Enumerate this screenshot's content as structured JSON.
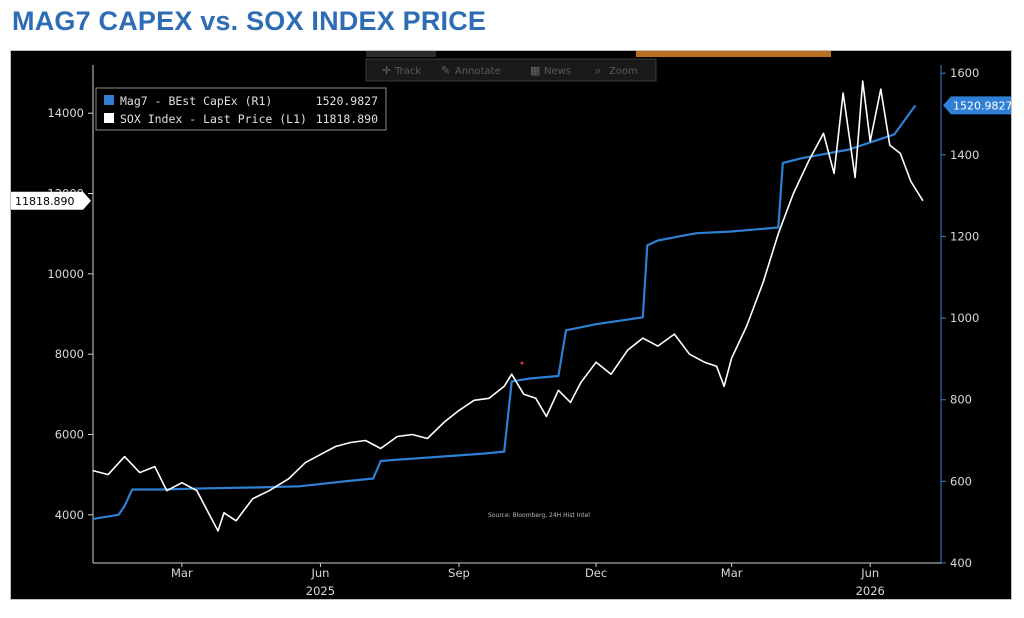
{
  "title": "MAG7 CAPEX vs. SOX INDEX PRICE",
  "toolbar": {
    "track_label": "Track",
    "annotate_label": "Annotate",
    "news_label": "News",
    "zoom_label": "Zoom"
  },
  "colors": {
    "background": "#000000",
    "capex_line": "#2f7fd4",
    "sox_line": "#ffffff",
    "title": "#2e6cb5"
  },
  "chart_data": {
    "type": "line",
    "source_note": "Source: Bloomberg, 24H Hist Intel",
    "legend": {
      "position": "top-left",
      "entries": [
        {
          "label": "Mag7 - BEst CapEx (R1)",
          "value": "1520.9827",
          "color": "#2f7fd4"
        },
        {
          "label": "SOX Index - Last Price (L1)",
          "value": "11818.890",
          "color": "#ffffff"
        }
      ]
    },
    "x_axis": {
      "month_ticks": [
        {
          "label": "Mar",
          "t": "2025-03"
        },
        {
          "label": "Jun",
          "t": "2025-06"
        },
        {
          "label": "Sep",
          "t": "2025-09"
        },
        {
          "label": "Dec",
          "t": "2025-12"
        },
        {
          "label": "Mar",
          "t": "2026-03"
        },
        {
          "label": "Jun",
          "t": "2026-06"
        }
      ],
      "year_labels": [
        {
          "label": "2025",
          "t": "2025-06"
        },
        {
          "label": "2026",
          "t": "2026-06"
        }
      ],
      "range": [
        "2025-01-15",
        "2026-08-01"
      ]
    },
    "y_left": {
      "label": "",
      "range": [
        2800,
        15200
      ],
      "ticks": [
        "4000",
        "6000",
        "8000",
        "10000",
        "12000",
        "14000"
      ],
      "last_value_tag": "11818.890"
    },
    "y_right": {
      "label": "",
      "range": [
        400,
        1620
      ],
      "ticks": [
        "400",
        "600",
        "800",
        "1000",
        "1200",
        "1400",
        "1600"
      ],
      "last_value_tag": "1520.9827"
    },
    "series": [
      {
        "name": "Mag7 - BEst CapEx (R1)",
        "axis": "right",
        "x": [
          "2025-01-15",
          "2025-02-01",
          "2025-02-05",
          "2025-02-10",
          "2025-03-01",
          "2025-04-01",
          "2025-05-01",
          "2025-06-01",
          "2025-07-01",
          "2025-07-20",
          "2025-07-25",
          "2025-08-01",
          "2025-09-01",
          "2025-10-01",
          "2025-10-15",
          "2025-10-20",
          "2025-11-01",
          "2025-11-20",
          "2025-11-25",
          "2025-12-15",
          "2026-01-15",
          "2026-01-18",
          "2026-01-25",
          "2026-02-15",
          "2026-02-20",
          "2026-03-15",
          "2026-04-15",
          "2026-04-18",
          "2026-05-01",
          "2026-06-01",
          "2026-07-01",
          "2026-07-15"
        ],
        "values": [
          508,
          518,
          540,
          580,
          580,
          583,
          585,
          588,
          600,
          607,
          650,
          652,
          660,
          668,
          673,
          845,
          852,
          858,
          970,
          985,
          1002,
          1178,
          1190,
          1205,
          1208,
          1212,
          1222,
          1380,
          1392,
          1413,
          1450,
          1521
        ]
      },
      {
        "name": "SOX Index - Last Price (L1)",
        "axis": "left",
        "x": [
          "2025-01-15",
          "2025-01-25",
          "2025-02-05",
          "2025-02-15",
          "2025-02-25",
          "2025-03-05",
          "2025-03-15",
          "2025-03-25",
          "2025-04-03",
          "2025-04-08",
          "2025-04-12",
          "2025-04-20",
          "2025-05-01",
          "2025-05-12",
          "2025-05-25",
          "2025-06-05",
          "2025-06-15",
          "2025-06-25",
          "2025-07-05",
          "2025-07-15",
          "2025-07-25",
          "2025-08-05",
          "2025-08-15",
          "2025-08-25",
          "2025-09-05",
          "2025-09-15",
          "2025-09-25",
          "2025-10-05",
          "2025-10-15",
          "2025-10-20",
          "2025-10-28",
          "2025-11-05",
          "2025-11-12",
          "2025-11-20",
          "2025-11-28",
          "2025-12-05",
          "2025-12-15",
          "2025-12-25",
          "2026-01-05",
          "2026-01-15",
          "2026-01-25",
          "2026-02-05",
          "2026-02-15",
          "2026-02-25",
          "2026-03-05",
          "2026-03-10",
          "2026-03-15",
          "2026-03-25",
          "2026-04-05",
          "2026-04-15",
          "2026-04-25",
          "2026-05-05",
          "2026-05-15",
          "2026-05-22",
          "2026-05-28",
          "2026-06-05",
          "2026-06-10",
          "2026-06-15",
          "2026-06-22",
          "2026-06-28",
          "2026-07-05",
          "2026-07-12",
          "2026-07-20"
        ],
        "values": [
          5100,
          5000,
          5450,
          5050,
          5200,
          4600,
          4800,
          4600,
          3950,
          3600,
          4050,
          3850,
          4400,
          4600,
          4900,
          5300,
          5500,
          5700,
          5800,
          5850,
          5650,
          5950,
          6000,
          5900,
          6300,
          6600,
          6850,
          6900,
          7200,
          7500,
          7000,
          6900,
          6450,
          7100,
          6800,
          7300,
          7800,
          7500,
          8100,
          8400,
          8200,
          8500,
          8000,
          7800,
          7700,
          7200,
          7900,
          8700,
          9800,
          11000,
          12000,
          12800,
          13500,
          12500,
          14500,
          12400,
          14800,
          13300,
          14600,
          13200,
          13000,
          12300,
          11819
        ]
      }
    ]
  }
}
